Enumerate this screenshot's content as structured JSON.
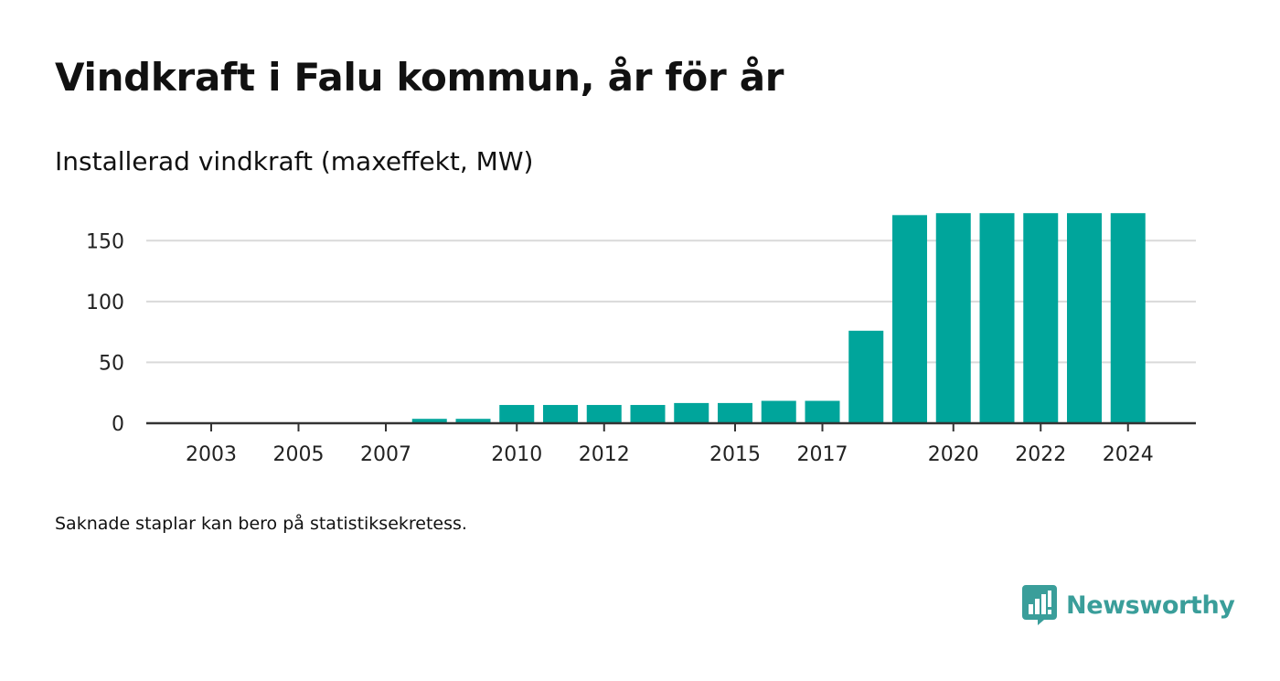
{
  "title": "Vindkraft i Falu kommun, år för år",
  "subtitle": "Installerad vindkraft (maxeffekt, MW)",
  "footnote": "Saknade staplar kan bero på statistiksekretess.",
  "brand": {
    "name": "Newsworthy",
    "color": "#3a9e9a",
    "icon": "newsworthy-logo-icon"
  },
  "colors": {
    "bar": "#00a59b",
    "grid": "#d9d9d9",
    "axis": "#333333"
  },
  "chart_data": {
    "type": "bar",
    "title": "Vindkraft i Falu kommun, år för år",
    "subtitle": "Installerad vindkraft (maxeffekt, MW)",
    "xlabel": "",
    "ylabel": "",
    "ylim": [
      0,
      175
    ],
    "yticks": [
      0,
      50,
      100,
      150
    ],
    "grid": true,
    "legend": "none",
    "x_tick_labels": [
      "2003",
      "2005",
      "2007",
      "2010",
      "2012",
      "2015",
      "2017",
      "2020",
      "2022",
      "2024"
    ],
    "categories": [
      "2003",
      "2004",
      "2005",
      "2006",
      "2007",
      "2008",
      "2009",
      "2010",
      "2011",
      "2012",
      "2013",
      "2014",
      "2015",
      "2016",
      "2017",
      "2018",
      "2019",
      "2020",
      "2021",
      "2022",
      "2023",
      "2024"
    ],
    "values": [
      null,
      null,
      null,
      null,
      null,
      3.6,
      3.6,
      15,
      15,
      15,
      15,
      16.6,
      16.6,
      18.4,
      18.4,
      76,
      171,
      172.6,
      172.6,
      172.6,
      172.6,
      172.6
    ]
  }
}
